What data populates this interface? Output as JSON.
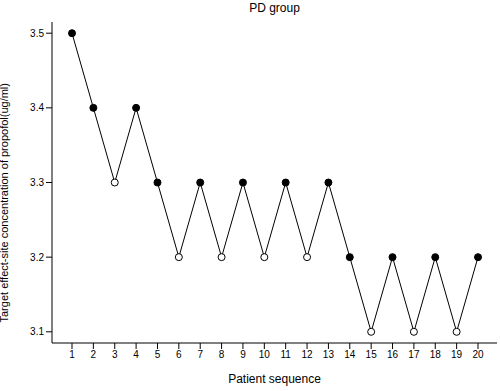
{
  "chart_data": {
    "type": "line",
    "title": "PD group",
    "x_label": "Patient sequence",
    "y_label": "Target effect-site concentration of propofol(ug/ml)",
    "categories": [
      "1",
      "2",
      "3",
      "4",
      "5",
      "6",
      "7",
      "8",
      "9",
      "10",
      "11",
      "12",
      "13",
      "14",
      "15",
      "16",
      "17",
      "18",
      "19",
      "20"
    ],
    "series": [
      {
        "type": "line",
        "color": "#000000",
        "marker": "none",
        "values": [
          3.5,
          3.4,
          3.3,
          3.4,
          3.3,
          3.2,
          3.3,
          3.2,
          3.3,
          3.2,
          3.3,
          3.2,
          3.3,
          3.2,
          3.1,
          3.2,
          3.1,
          3.2,
          3.1,
          3.2
        ]
      },
      {
        "type": "scatter",
        "color": "#000000",
        "marker": "filled_circle",
        "values": [
          3.5,
          3.4,
          null,
          3.4,
          3.3,
          null,
          3.3,
          null,
          3.3,
          null,
          3.3,
          null,
          3.3,
          3.2,
          null,
          3.2,
          null,
          3.2,
          null,
          3.2
        ]
      },
      {
        "type": "scatter",
        "color": "#000000",
        "marker": "open_circle",
        "values": [
          null,
          null,
          3.3,
          null,
          null,
          3.2,
          null,
          3.2,
          null,
          3.2,
          null,
          3.2,
          null,
          null,
          3.1,
          null,
          3.1,
          null,
          3.1,
          null
        ]
      }
    ],
    "ylim": [
      3.085,
      3.515
    ],
    "yticks": [
      3.1,
      3.2,
      3.3,
      3.4,
      3.5
    ],
    "grid": false
  }
}
